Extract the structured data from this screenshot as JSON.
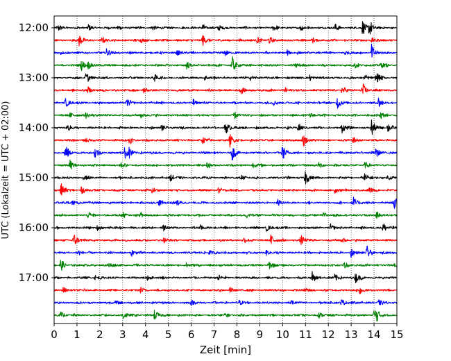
{
  "chart_data": {
    "type": "line",
    "title": "",
    "xlabel": "Zeit  [min]",
    "ylabel": "UTC (Lokalzeit = UTC + 02:00)",
    "xlim": [
      0,
      15
    ],
    "x_ticks": [
      "0",
      "1",
      "2",
      "3",
      "4",
      "5",
      "6",
      "7",
      "8",
      "9",
      "10",
      "11",
      "12",
      "13",
      "14",
      "15"
    ],
    "y_ticks": [
      "12:00",
      "13:00",
      "14:00",
      "15:00",
      "16:00",
      "17:00"
    ],
    "grid": "vertical dotted lines at each minute",
    "colors": [
      "#000000",
      "#ff0000",
      "#0000ff",
      "#008000"
    ],
    "series": [
      {
        "start": "12:00",
        "color": "#000000",
        "events": [
          [
            0.2,
            0.5
          ],
          [
            1.5,
            0.5
          ],
          [
            2.8,
            0.4
          ],
          [
            4.3,
            0.4
          ],
          [
            6.5,
            0.6
          ],
          [
            7.2,
            0.4
          ],
          [
            9.6,
            0.4
          ],
          [
            10.8,
            0.5
          ],
          [
            12.3,
            0.6
          ],
          [
            13.5,
            1.2
          ],
          [
            13.8,
            1.3
          ]
        ]
      },
      {
        "start": "12:15",
        "color": "#ff0000",
        "events": [
          [
            1.1,
            1.0
          ],
          [
            2.1,
            0.4
          ],
          [
            3.8,
            0.4
          ],
          [
            6.5,
            1.0
          ],
          [
            8.9,
            0.5
          ],
          [
            9.4,
            0.5
          ],
          [
            11.3,
            0.4
          ],
          [
            13.9,
            0.4
          ]
        ]
      },
      {
        "start": "12:30",
        "color": "#0000ff",
        "events": [
          [
            0.3,
            0.3
          ],
          [
            2.3,
            0.6
          ],
          [
            5.4,
            0.4
          ],
          [
            7.5,
            0.5
          ],
          [
            10.2,
            0.4
          ],
          [
            12.7,
            0.4
          ],
          [
            13.9,
            1.3
          ]
        ]
      },
      {
        "start": "12:45",
        "color": "#008000",
        "events": [
          [
            1.2,
            0.8
          ],
          [
            1.5,
            0.6
          ],
          [
            5.8,
            0.5
          ],
          [
            7.8,
            1.3
          ],
          [
            10.6,
            0.4
          ],
          [
            13.2,
            0.4
          ],
          [
            14.3,
            0.4
          ]
        ]
      },
      {
        "start": "13:00",
        "color": "#000000",
        "events": [
          [
            1.4,
            0.9
          ],
          [
            4.4,
            0.5
          ],
          [
            6.6,
            0.4
          ],
          [
            8.6,
            0.4
          ],
          [
            11.2,
            0.5
          ],
          [
            13.6,
            0.5
          ],
          [
            14.1,
            0.9
          ]
        ]
      },
      {
        "start": "13:15",
        "color": "#ff0000",
        "events": [
          [
            1.5,
            0.5
          ],
          [
            3.9,
            0.5
          ],
          [
            8.2,
            0.5
          ],
          [
            10.1,
            0.4
          ],
          [
            12.6,
            0.6
          ],
          [
            13.5,
            1.2
          ]
        ]
      },
      {
        "start": "13:30",
        "color": "#0000ff",
        "events": [
          [
            0.5,
            0.6
          ],
          [
            3.2,
            0.5
          ],
          [
            6.1,
            0.5
          ],
          [
            9.6,
            0.4
          ],
          [
            12.4,
            1.0
          ],
          [
            14.2,
            0.9
          ]
        ]
      },
      {
        "start": "13:45",
        "color": "#008000",
        "events": [
          [
            0.7,
            0.4
          ],
          [
            1.4,
            0.5
          ],
          [
            3.8,
            0.4
          ],
          [
            7.9,
            0.5
          ],
          [
            11.2,
            0.4
          ],
          [
            14.3,
            0.5
          ]
        ]
      },
      {
        "start": "14:00",
        "color": "#000000",
        "events": [
          [
            0.6,
            0.5
          ],
          [
            4.7,
            0.5
          ],
          [
            7.5,
            1.1
          ],
          [
            10.7,
            0.7
          ],
          [
            12.6,
            0.8
          ],
          [
            13.9,
            1.3
          ],
          [
            14.6,
            0.9
          ]
        ]
      },
      {
        "start": "14:15",
        "color": "#ff0000",
        "events": [
          [
            1.4,
            0.4
          ],
          [
            3.3,
            0.6
          ],
          [
            6.5,
            0.5
          ],
          [
            7.7,
            1.0
          ],
          [
            10.9,
            1.1
          ],
          [
            13.1,
            0.5
          ]
        ]
      },
      {
        "start": "14:30",
        "color": "#0000ff",
        "events": [
          [
            0.5,
            1.1
          ],
          [
            1.8,
            0.9
          ],
          [
            3.1,
            0.9
          ],
          [
            3.3,
            0.8
          ],
          [
            7.8,
            1.1
          ],
          [
            10.0,
            1.2
          ],
          [
            14.1,
            0.8
          ]
        ]
      },
      {
        "start": "14:45",
        "color": "#008000",
        "events": [
          [
            0.7,
            0.8
          ],
          [
            2.9,
            0.4
          ],
          [
            6.7,
            0.4
          ],
          [
            8.7,
            0.4
          ],
          [
            11.6,
            0.4
          ],
          [
            13.6,
            0.4
          ]
        ]
      },
      {
        "start": "15:00",
        "color": "#000000",
        "events": [
          [
            1.3,
            0.4
          ],
          [
            5.1,
            0.5
          ],
          [
            8.2,
            0.4
          ],
          [
            11.0,
            1.3
          ],
          [
            13.6,
            0.7
          ],
          [
            14.6,
            0.4
          ]
        ]
      },
      {
        "start": "15:15",
        "color": "#ff0000",
        "events": [
          [
            0.3,
            1.1
          ],
          [
            1.2,
            0.5
          ],
          [
            4.3,
            0.5
          ],
          [
            7.2,
            0.5
          ],
          [
            12.3,
            0.4
          ],
          [
            13.8,
            0.4
          ]
        ]
      },
      {
        "start": "15:30",
        "color": "#0000ff",
        "events": [
          [
            0.8,
            0.4
          ],
          [
            4.6,
            0.5
          ],
          [
            5.4,
            0.5
          ],
          [
            9.8,
            0.4
          ],
          [
            13.1,
            0.9
          ],
          [
            14.9,
            1.0
          ]
        ]
      },
      {
        "start": "15:45",
        "color": "#008000",
        "events": [
          [
            1.5,
            0.4
          ],
          [
            3.0,
            0.5
          ],
          [
            3.8,
            0.4
          ],
          [
            8.4,
            0.4
          ],
          [
            11.8,
            0.4
          ],
          [
            14.1,
            0.5
          ]
        ]
      },
      {
        "start": "16:00",
        "color": "#000000",
        "events": [
          [
            1.9,
            0.4
          ],
          [
            4.8,
            0.4
          ],
          [
            6.4,
            0.4
          ],
          [
            9.3,
            0.5
          ],
          [
            12.1,
            0.4
          ],
          [
            14.4,
            0.9
          ]
        ]
      },
      {
        "start": "16:15",
        "color": "#ff0000",
        "events": [
          [
            0.8,
            0.4
          ],
          [
            0.9,
            0.8
          ],
          [
            4.8,
            0.4
          ],
          [
            8.3,
            0.5
          ],
          [
            9.5,
            0.9
          ],
          [
            10.8,
            0.9
          ],
          [
            12.6,
            0.4
          ]
        ]
      },
      {
        "start": "16:30",
        "color": "#0000ff",
        "events": [
          [
            1.0,
            0.4
          ],
          [
            3.4,
            0.5
          ],
          [
            6.8,
            0.4
          ],
          [
            9.3,
            0.4
          ],
          [
            13.0,
            0.6
          ],
          [
            13.7,
            1.0
          ]
        ]
      },
      {
        "start": "16:45",
        "color": "#008000",
        "events": [
          [
            0.3,
            0.9
          ],
          [
            2.4,
            0.5
          ],
          [
            5.8,
            0.4
          ],
          [
            9.4,
            0.7
          ],
          [
            12.7,
            0.5
          ],
          [
            14.9,
            0.5
          ]
        ]
      },
      {
        "start": "17:00",
        "color": "#000000",
        "events": [
          [
            1.8,
            0.4
          ],
          [
            4.1,
            0.4
          ],
          [
            7.2,
            0.4
          ],
          [
            11.3,
            0.9
          ],
          [
            12.3,
            0.6
          ],
          [
            13.2,
            0.8
          ]
        ]
      },
      {
        "start": "17:15",
        "color": "#ff0000",
        "events": [
          [
            0.4,
            0.4
          ],
          [
            3.8,
            0.4
          ],
          [
            7.7,
            0.4
          ],
          [
            11.0,
            0.4
          ],
          [
            13.4,
            0.7
          ]
        ]
      },
      {
        "start": "17:30",
        "color": "#0000ff",
        "events": [
          [
            2.7,
            0.4
          ],
          [
            6.0,
            0.4
          ],
          [
            8.1,
            0.4
          ],
          [
            10.4,
            0.4
          ],
          [
            12.6,
            0.6
          ],
          [
            14.2,
            0.4
          ]
        ]
      },
      {
        "start": "17:45",
        "color": "#008000",
        "events": [
          [
            0.3,
            0.5
          ],
          [
            3.0,
            0.9
          ],
          [
            4.4,
            0.8
          ],
          [
            7.5,
            0.4
          ],
          [
            11.6,
            0.4
          ],
          [
            14.0,
            0.9
          ],
          [
            14.1,
            0.7
          ]
        ]
      }
    ]
  }
}
